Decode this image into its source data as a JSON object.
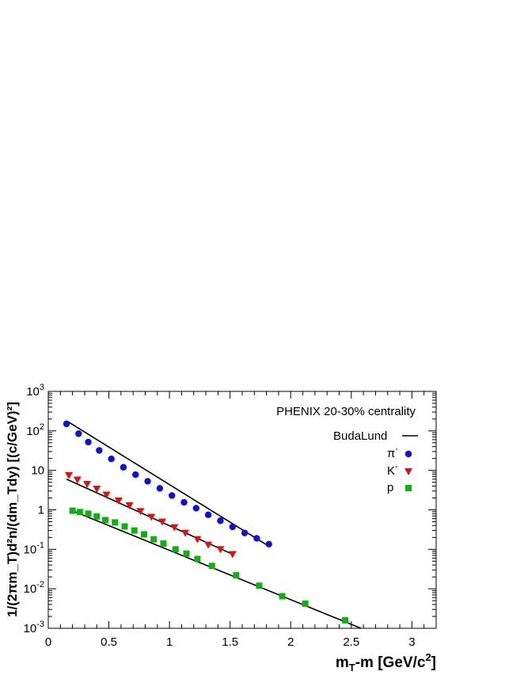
{
  "chart_data": {
    "type": "scatter",
    "annotation": "PHENIX 20-30% centrality",
    "xlabel": {
      "main": "m",
      "sub": "T",
      "rest": "-m [GeV/c",
      "sup": "2",
      "close": "]"
    },
    "ylabel": "1/(2πm_T)d²n/(dm_Tdy) [(c/GeV)²]",
    "xlim": [
      0,
      3.2
    ],
    "ylim": [
      0.001,
      1000
    ],
    "yscale": "log",
    "x_ticks": [
      {
        "value": 0,
        "label": "0"
      },
      {
        "value": 0.5,
        "label": "0.5"
      },
      {
        "value": 1,
        "label": "1"
      },
      {
        "value": 1.5,
        "label": "1.5"
      },
      {
        "value": 2,
        "label": "2"
      },
      {
        "value": 2.5,
        "label": "2.5"
      },
      {
        "value": 3,
        "label": "3"
      }
    ],
    "y_ticks": [
      {
        "value": 0.001,
        "base": "10",
        "exp": "-3"
      },
      {
        "value": 0.01,
        "base": "10",
        "exp": "-2"
      },
      {
        "value": 0.1,
        "base": "10",
        "exp": "-1"
      },
      {
        "value": 1,
        "base": "1",
        "exp": ""
      },
      {
        "value": 10,
        "base": "10",
        "exp": ""
      },
      {
        "value": 100,
        "base": "10",
        "exp": "2"
      },
      {
        "value": 1000,
        "base": "10",
        "exp": "3"
      }
    ],
    "legend_position": "top-right",
    "legend": [
      {
        "label": "BudaLund",
        "sup": "",
        "marker": "line",
        "color": "#000000"
      },
      {
        "label": "π",
        "sup": "-",
        "marker": "circle",
        "color": "#1010d0"
      },
      {
        "label": "K",
        "sup": "-",
        "marker": "triangle-down",
        "color": "#e01010"
      },
      {
        "label": "p",
        "sup": "",
        "marker": "square",
        "color": "#10b010"
      }
    ],
    "series": [
      {
        "name": "π-",
        "marker": "circle",
        "color": "#1010d0",
        "x": [
          0.15,
          0.25,
          0.33,
          0.42,
          0.52,
          0.62,
          0.72,
          0.82,
          0.92,
          1.02,
          1.12,
          1.22,
          1.32,
          1.42,
          1.52,
          1.62,
          1.72,
          1.82
        ],
        "y": [
          150,
          85,
          52,
          32,
          19.5,
          12,
          7.8,
          5.3,
          3.5,
          2.3,
          1.55,
          1.1,
          0.75,
          0.53,
          0.37,
          0.26,
          0.19,
          0.135
        ],
        "fit": {
          "x": [
            0.15,
            1.82
          ],
          "y": [
            180,
            0.12
          ]
        }
      },
      {
        "name": "K-",
        "marker": "triangle-down",
        "color": "#e01010",
        "x": [
          0.17,
          0.24,
          0.32,
          0.4,
          0.48,
          0.58,
          0.67,
          0.76,
          0.85,
          0.94,
          1.04,
          1.13,
          1.23,
          1.32,
          1.42,
          1.52
        ],
        "y": [
          7.5,
          5.8,
          4.5,
          3.4,
          2.4,
          1.7,
          1.3,
          0.92,
          0.66,
          0.5,
          0.36,
          0.26,
          0.18,
          0.13,
          0.1,
          0.075
        ],
        "fit": {
          "x": [
            0.15,
            1.52
          ],
          "y": [
            6.0,
            0.075
          ]
        }
      },
      {
        "name": "p",
        "marker": "square",
        "color": "#10b010",
        "x": [
          0.2,
          0.26,
          0.33,
          0.4,
          0.47,
          0.55,
          0.63,
          0.71,
          0.79,
          0.87,
          0.95,
          1.05,
          1.14,
          1.23,
          1.35,
          1.55,
          1.74,
          1.93,
          2.12,
          2.45
        ],
        "y": [
          0.95,
          0.88,
          0.8,
          0.68,
          0.55,
          0.48,
          0.38,
          0.3,
          0.24,
          0.18,
          0.14,
          0.1,
          0.078,
          0.057,
          0.038,
          0.022,
          0.012,
          0.0065,
          0.0042,
          0.0016
        ],
        "fit": {
          "x": [
            0.18,
            2.58
          ],
          "y": [
            1.0,
            0.001
          ]
        }
      }
    ]
  }
}
